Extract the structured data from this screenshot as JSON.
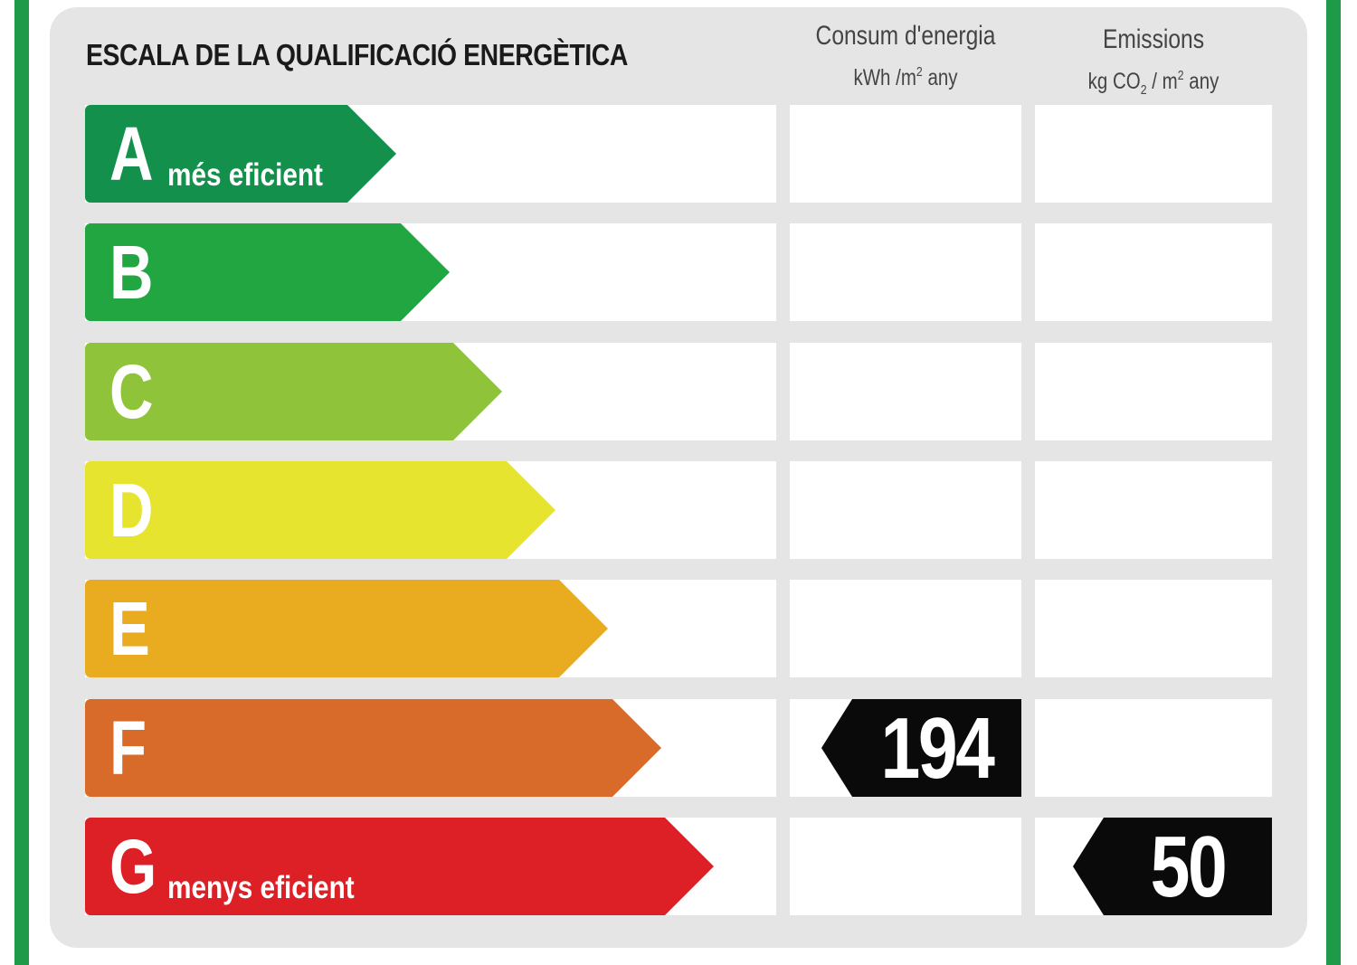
{
  "title": "ESCALA DE LA QUALIFICACIÓ ENERGÈTICA",
  "columns": {
    "energy": {
      "label": "Consum d'energia",
      "unit_pre": "kWh /m",
      "unit_sup": "2",
      "unit_post": " any"
    },
    "emissions": {
      "label": "Emissions",
      "unit_pre": "kg CO",
      "unit_sub": "2",
      "unit_mid": " / m",
      "unit_sup": "2",
      "unit_post": " any"
    }
  },
  "ratings": [
    {
      "letter": "A",
      "caption": "més eficient",
      "color": "#13904c"
    },
    {
      "letter": "B",
      "caption": "",
      "color": "#21a641"
    },
    {
      "letter": "C",
      "caption": "",
      "color": "#8fc43a"
    },
    {
      "letter": "D",
      "caption": "",
      "color": "#e6e42e"
    },
    {
      "letter": "E",
      "caption": "",
      "color": "#e9ac21"
    },
    {
      "letter": "F",
      "caption": "",
      "color": "#d86a2a"
    },
    {
      "letter": "G",
      "caption": "menys eficient",
      "color": "#dd1f26"
    }
  ],
  "energy_value": "194",
  "energy_rating": "F",
  "emissions_value": "50",
  "emissions_rating": "G",
  "colors": {
    "frame": "#1f9a49",
    "panel": "#e5e5e5",
    "marker": "#0a0a0a"
  }
}
